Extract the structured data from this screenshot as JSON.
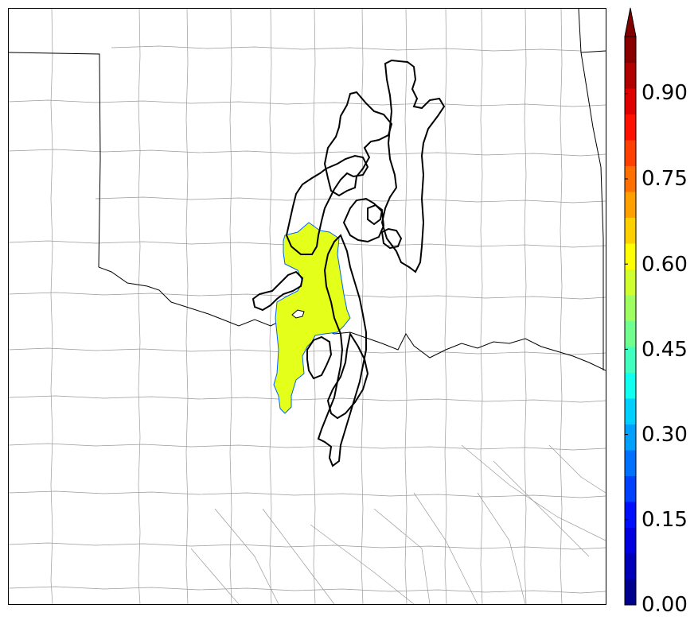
{
  "colorbar": {
    "labels": [
      {
        "value": "0.00"
      },
      {
        "value": "0.15"
      },
      {
        "value": "0.30"
      },
      {
        "value": "0.45"
      },
      {
        "value": "0.60"
      },
      {
        "value": "0.75"
      },
      {
        "value": "0.90"
      }
    ],
    "colors": [
      "#00008f",
      "#0000b8",
      "#0000e0",
      "#0010ff",
      "#0040ff",
      "#0070ff",
      "#00a0ff",
      "#00d0ff",
      "#10ffef",
      "#40ffbf",
      "#70ff8f",
      "#a0ff60",
      "#d0ff30",
      "#ffff00",
      "#ffd000",
      "#ffa000",
      "#ff7000",
      "#ff4000",
      "#ff1000",
      "#e00000",
      "#b00000",
      "#8a0000"
    ],
    "extend_color": "#800000"
  },
  "map": {
    "fill_color": "#e4ff1a",
    "fill_edge_color": "#0060ff",
    "contour_color": "#000000",
    "state_border_color": "#000000",
    "county_border_color": "#9a9a9a"
  }
}
